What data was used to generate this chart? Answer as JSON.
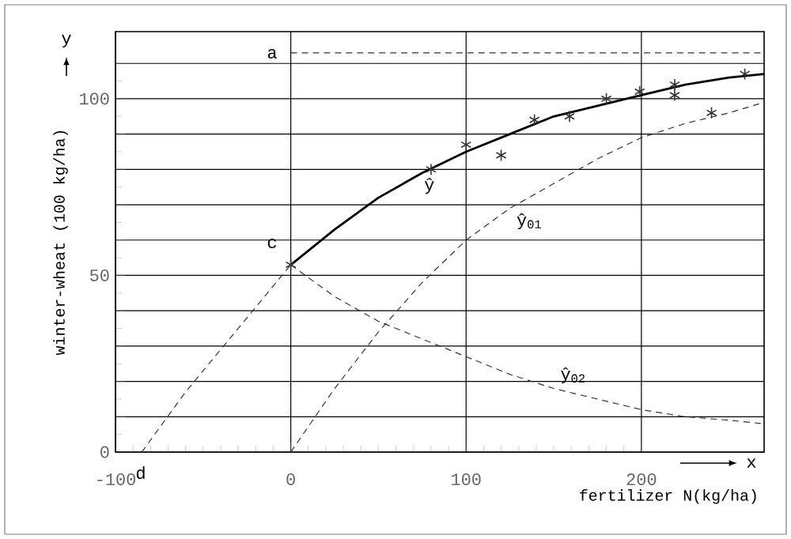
{
  "chart_data": {
    "type": "line",
    "xlabel": "fertilizer N(kg/ha)",
    "ylabel": "winter-wheat (100 kg/ha)",
    "xlim": [
      -100,
      270
    ],
    "ylim": [
      0,
      119
    ],
    "xticks": [
      -100,
      0,
      100,
      200
    ],
    "yticks": [
      0,
      {
        "value": 10,
        "label": null
      },
      {
        "value": 20,
        "label": null
      },
      {
        "value": 30,
        "label": null
      },
      {
        "value": 40,
        "label": null
      },
      50,
      {
        "value": 60,
        "label": null
      },
      {
        "value": 70,
        "label": null
      },
      {
        "value": 80,
        "label": null
      },
      {
        "value": 90,
        "label": null
      },
      100,
      {
        "value": 110,
        "label": null
      }
    ],
    "grid": true,
    "legend": false,
    "series": [
      {
        "name": "ŷ",
        "color": "#000000",
        "line_style": "solid",
        "x": [
          0,
          25,
          50,
          75,
          100,
          125,
          150,
          175,
          200,
          225,
          250,
          270
        ],
        "values": [
          53,
          63,
          72,
          79,
          85,
          90,
          95,
          98,
          101,
          104,
          106,
          107
        ]
      },
      {
        "color": "#333333",
        "line_style": "dashed",
        "x": [
          -85,
          -60,
          -40,
          -20,
          0
        ],
        "values": [
          0,
          17,
          29,
          41,
          53
        ]
      },
      {
        "name": "ŷ$_{01}$",
        "color": "#333333",
        "line_style": "dashed",
        "x": [
          0,
          25,
          50,
          75,
          100,
          125,
          150,
          175,
          200,
          225,
          250,
          270
        ],
        "values": [
          0,
          18,
          34,
          48,
          60,
          69,
          76,
          83,
          89,
          93,
          96,
          99
        ]
      },
      {
        "name": "ŷ$_{02}$",
        "color": "#333333",
        "line_style": "dashed",
        "x": [
          0,
          25,
          50,
          75,
          100,
          125,
          150,
          175,
          200,
          225,
          250,
          270
        ],
        "values": [
          53,
          44,
          37,
          32,
          27,
          22,
          18,
          15,
          12,
          10,
          9,
          8
        ]
      },
      {
        "color": "#333333",
        "line_style": "dashed",
        "x": [
          0,
          270
        ],
        "values": [
          113,
          113
        ]
      },
      {
        "type": "scatter",
        "color": "#333333",
        "marker": "cross",
        "x": [
          0,
          80,
          100,
          120,
          139,
          159,
          180,
          199,
          219,
          219,
          240,
          259
        ],
        "values": [
          53,
          80,
          87,
          84,
          94,
          95,
          100,
          102,
          104,
          101,
          96,
          107
        ]
      }
    ],
    "annotations": [
      "a",
      "c",
      "d",
      "y",
      "x"
    ]
  }
}
